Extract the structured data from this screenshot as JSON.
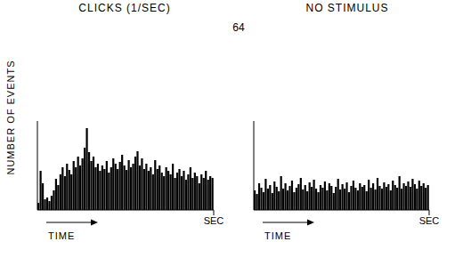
{
  "header": {
    "text": "64"
  },
  "chart_data": [
    {
      "type": "histogram",
      "title": "CLICKS (1/SEC)",
      "x_label": "TIME",
      "y_label": "NUMBER OF EVENTS",
      "bins": [
        0,
        0.0125,
        0.025,
        0.0375,
        0.05,
        0.0625,
        0.075,
        0.0875,
        0.1,
        0.1125,
        0.125,
        0.1375,
        0.15,
        0.1625,
        0.175,
        0.1875,
        0.2,
        0.2125,
        0.225,
        0.2375,
        0.25,
        0.2625,
        0.275,
        0.2875,
        0.3,
        0.3125,
        0.325,
        0.3375,
        0.35,
        0.3625,
        0.375,
        0.3875,
        0.4,
        0.4125,
        0.425,
        0.4375,
        0.45,
        0.4625,
        0.475,
        0.4875,
        0.5,
        0.5125,
        0.525,
        0.5375,
        0.55,
        0.5625,
        0.575,
        0.5875,
        0.6,
        0.6125,
        0.625,
        0.6375,
        0.65,
        0.6625,
        0.675,
        0.6875,
        0.7,
        0.7125,
        0.725,
        0.7375,
        0.75,
        0.7625,
        0.775,
        0.7875,
        0.8,
        0.8125,
        0.825,
        0.8375,
        0.85,
        0.8625,
        0.875,
        0.8875,
        0.9,
        0.9125,
        0.925,
        0.9375,
        0.95,
        0.9625,
        0.975,
        0.9875,
        1
      ],
      "values": [
        8,
        44,
        30,
        12,
        14,
        10,
        16,
        22,
        35,
        28,
        40,
        48,
        38,
        52,
        45,
        40,
        55,
        48,
        60,
        50,
        58,
        70,
        92,
        65,
        55,
        60,
        48,
        52,
        44,
        50,
        46,
        55,
        42,
        48,
        58,
        52,
        46,
        54,
        62,
        50,
        45,
        56,
        48,
        52,
        60,
        66,
        50,
        58,
        46,
        52,
        44,
        48,
        40,
        56,
        46,
        50,
        42,
        38,
        48,
        44,
        40,
        52,
        36,
        42,
        46,
        38,
        44,
        34,
        40,
        48,
        36,
        42,
        38,
        30,
        40,
        36,
        44,
        34,
        38,
        36
      ],
      "color": "#000000",
      "xlim": [
        0,
        1
      ],
      "xticks": [
        {
          "value": 1,
          "label": "SEC"
        }
      ],
      "ylim": [
        0,
        100
      ],
      "tick_labels": "x"
    },
    {
      "type": "histogram",
      "title": "NO STIMULUS",
      "x_label": "TIME",
      "bins": [
        0,
        0.0125,
        0.025,
        0.0375,
        0.05,
        0.0625,
        0.075,
        0.0875,
        0.1,
        0.1125,
        0.125,
        0.1375,
        0.15,
        0.1625,
        0.175,
        0.1875,
        0.2,
        0.2125,
        0.225,
        0.2375,
        0.25,
        0.2625,
        0.275,
        0.2875,
        0.3,
        0.3125,
        0.325,
        0.3375,
        0.35,
        0.3625,
        0.375,
        0.3875,
        0.4,
        0.4125,
        0.425,
        0.4375,
        0.45,
        0.4625,
        0.475,
        0.4875,
        0.5,
        0.5125,
        0.525,
        0.5375,
        0.55,
        0.5625,
        0.575,
        0.5875,
        0.6,
        0.6125,
        0.625,
        0.6375,
        0.65,
        0.6625,
        0.675,
        0.6875,
        0.7,
        0.7125,
        0.725,
        0.7375,
        0.75,
        0.7625,
        0.775,
        0.7875,
        0.8,
        0.8125,
        0.825,
        0.8375,
        0.85,
        0.8625,
        0.875,
        0.8875,
        0.9,
        0.9125,
        0.925,
        0.9375,
        0.95,
        0.9625,
        0.975,
        0.9875,
        1
      ],
      "values": [
        22,
        18,
        30,
        25,
        20,
        35,
        24,
        28,
        19,
        32,
        26,
        21,
        38,
        24,
        30,
        22,
        27,
        33,
        20,
        25,
        29,
        36,
        23,
        28,
        21,
        31,
        26,
        34,
        24,
        20,
        28,
        25,
        32,
        22,
        30,
        27,
        19,
        26,
        35,
        23,
        29,
        24,
        31,
        20,
        27,
        33,
        25,
        22,
        30,
        26,
        28,
        21,
        34,
        25,
        30,
        23,
        36,
        27,
        24,
        31,
        26,
        29,
        22,
        33,
        28,
        25,
        38,
        24,
        30,
        27,
        32,
        26,
        35,
        29,
        24,
        33,
        27,
        30,
        25,
        28
      ],
      "color": "#000000",
      "xlim": [
        0,
        1
      ],
      "xticks": [
        {
          "value": 1,
          "label": "SEC"
        }
      ],
      "ylim": [
        0,
        100
      ],
      "tick_labels": "x"
    }
  ]
}
